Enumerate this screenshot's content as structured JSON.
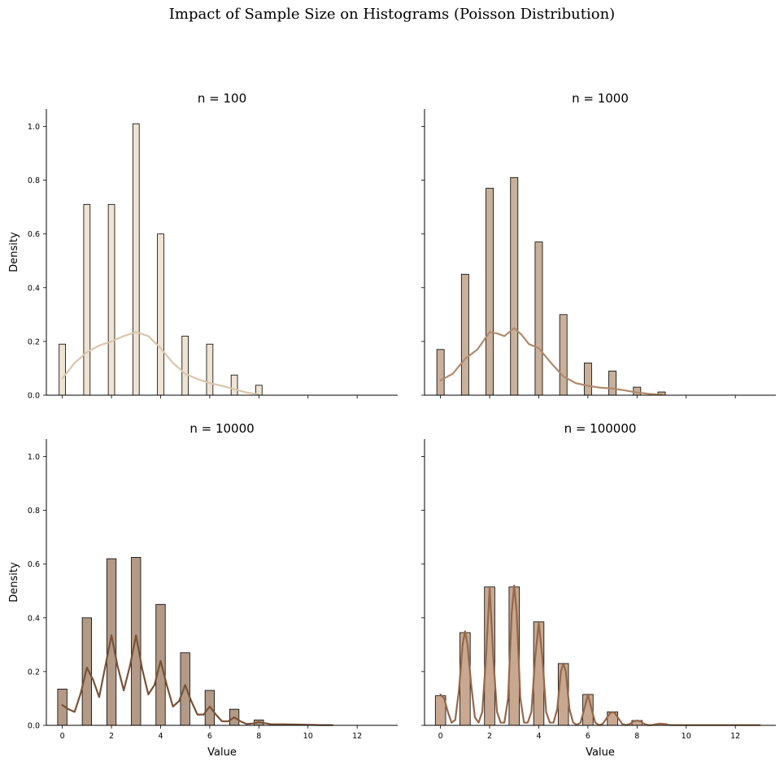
{
  "suptitle": "Impact of Sample Size on Histograms (Poisson Distribution)",
  "chart_data": [
    {
      "type": "bar",
      "title": "n = 100",
      "xlabel": "",
      "ylabel": "Density",
      "xlim": [
        -0.65,
        13.65
      ],
      "ylim": [
        0,
        1.065
      ],
      "xticks": [
        0,
        2,
        4,
        6,
        8,
        10,
        12
      ],
      "show_xticklabels": false,
      "yticks": [
        0.0,
        0.2,
        0.4,
        0.6,
        0.8,
        1.0
      ],
      "show_yticklabels": true,
      "bar_color": "#efe3d3",
      "kde_color": "#dac6ab",
      "bars": {
        "x": [
          0,
          1,
          2,
          3,
          4,
          5,
          6,
          7,
          8
        ],
        "values": [
          0.19,
          0.71,
          0.71,
          1.01,
          0.6,
          0.22,
          0.19,
          0.075,
          0.037
        ],
        "width": 0.26
      },
      "kde": {
        "x": [
          0,
          0.5,
          1,
          1.5,
          2,
          2.5,
          3,
          3.5,
          4,
          4.5,
          5,
          5.5,
          6,
          6.5,
          7,
          7.5,
          8
        ],
        "y": [
          0.062,
          0.12,
          0.16,
          0.185,
          0.2,
          0.22,
          0.235,
          0.22,
          0.175,
          0.12,
          0.08,
          0.06,
          0.045,
          0.035,
          0.022,
          0.01,
          0.003
        ]
      }
    },
    {
      "type": "bar",
      "title": "n = 1000",
      "xlabel": "",
      "ylabel": "",
      "xlim": [
        -0.65,
        13.65
      ],
      "ylim": [
        0,
        1.065
      ],
      "xticks": [
        0,
        2,
        4,
        6,
        8,
        10,
        12
      ],
      "show_xticklabels": false,
      "yticks": [
        0.0,
        0.2,
        0.4,
        0.6,
        0.8,
        1.0
      ],
      "show_yticklabels": false,
      "bar_color": "#c9b09b",
      "kde_color": "#b08a6c",
      "bars": {
        "x": [
          0,
          1,
          2,
          3,
          4,
          5,
          6,
          7,
          8,
          9
        ],
        "values": [
          0.17,
          0.45,
          0.77,
          0.81,
          0.57,
          0.3,
          0.12,
          0.09,
          0.03,
          0.012
        ],
        "width": 0.3
      },
      "kde": {
        "x": [
          0,
          0.5,
          1,
          1.5,
          2,
          2.3,
          2.6,
          3,
          3.3,
          3.6,
          4,
          4.5,
          5,
          5.5,
          6,
          6.5,
          7,
          7.5,
          8,
          8.5,
          9
        ],
        "y": [
          0.055,
          0.08,
          0.135,
          0.17,
          0.235,
          0.23,
          0.22,
          0.25,
          0.225,
          0.19,
          0.175,
          0.12,
          0.07,
          0.045,
          0.035,
          0.028,
          0.025,
          0.018,
          0.01,
          0.005,
          0.002
        ]
      }
    },
    {
      "type": "bar",
      "title": "n = 10000",
      "xlabel": "Value",
      "ylabel": "Density",
      "xlim": [
        -0.65,
        13.65
      ],
      "ylim": [
        0,
        1.065
      ],
      "xticks": [
        0,
        2,
        4,
        6,
        8,
        10,
        12
      ],
      "show_xticklabels": true,
      "yticks": [
        0.0,
        0.2,
        0.4,
        0.6,
        0.8,
        1.0
      ],
      "show_yticklabels": true,
      "bar_color": "#b39a86",
      "kde_color": "#7a5236",
      "bars": {
        "x": [
          0,
          1,
          2,
          3,
          4,
          5,
          6,
          7,
          8
        ],
        "values": [
          0.135,
          0.4,
          0.62,
          0.625,
          0.45,
          0.27,
          0.13,
          0.06,
          0.02
        ],
        "width": 0.38
      },
      "kde": {
        "x": [
          0,
          0.25,
          0.5,
          0.75,
          1,
          1.25,
          1.5,
          1.75,
          2,
          2.25,
          2.5,
          2.75,
          3,
          3.25,
          3.5,
          3.75,
          4,
          4.25,
          4.5,
          4.75,
          5,
          5.25,
          5.5,
          5.75,
          6,
          6.25,
          6.5,
          6.75,
          7,
          7.25,
          7.5,
          7.75,
          8,
          8.5,
          9,
          9.5,
          10,
          10.5,
          11
        ],
        "y": [
          0.075,
          0.06,
          0.05,
          0.12,
          0.215,
          0.17,
          0.105,
          0.22,
          0.335,
          0.22,
          0.13,
          0.22,
          0.335,
          0.21,
          0.115,
          0.15,
          0.24,
          0.15,
          0.07,
          0.09,
          0.15,
          0.09,
          0.04,
          0.04,
          0.07,
          0.04,
          0.015,
          0.015,
          0.03,
          0.015,
          0.005,
          0.007,
          0.012,
          0.004,
          0.004,
          0.003,
          0.002,
          0.001,
          0.001
        ]
      }
    },
    {
      "type": "bar",
      "title": "n = 100000",
      "xlabel": "Value",
      "ylabel": "",
      "xlim": [
        -0.65,
        13.65
      ],
      "ylim": [
        0,
        1.065
      ],
      "xticks": [
        0,
        2,
        4,
        6,
        8,
        10,
        12
      ],
      "show_xticklabels": true,
      "yticks": [
        0.0,
        0.2,
        0.4,
        0.6,
        0.8,
        1.0
      ],
      "show_yticklabels": false,
      "bar_color": "#c8a891",
      "kde_color": "#96674a",
      "bars": {
        "x": [
          0,
          1,
          2,
          3,
          4,
          5,
          6,
          7,
          8,
          9
        ],
        "values": [
          0.11,
          0.345,
          0.515,
          0.515,
          0.385,
          0.23,
          0.115,
          0.05,
          0.018,
          0.006
        ],
        "width": 0.42
      },
      "kde": {
        "x": [
          0,
          0.15,
          0.3,
          0.45,
          0.6,
          0.75,
          0.9,
          1,
          1.1,
          1.25,
          1.4,
          1.55,
          1.7,
          1.85,
          2,
          2.15,
          2.3,
          2.45,
          2.6,
          2.75,
          2.9,
          3,
          3.1,
          3.25,
          3.4,
          3.55,
          3.7,
          3.85,
          4,
          4.15,
          4.3,
          4.45,
          4.6,
          4.75,
          4.9,
          5,
          5.1,
          5.25,
          5.4,
          5.55,
          5.7,
          5.85,
          6,
          6.15,
          6.3,
          6.45,
          6.6,
          6.75,
          6.9,
          7,
          7.1,
          7.25,
          7.4,
          7.55,
          7.7,
          7.85,
          8,
          8.15,
          8.3,
          8.45,
          8.6,
          8.75,
          8.9,
          9,
          9.1,
          9.25,
          9.4,
          10,
          11,
          12,
          13
        ],
        "y": [
          0.115,
          0.1,
          0.05,
          0.01,
          0.02,
          0.13,
          0.3,
          0.35,
          0.3,
          0.15,
          0.03,
          0.01,
          0.05,
          0.25,
          0.51,
          0.25,
          0.05,
          0.01,
          0.01,
          0.1,
          0.42,
          0.52,
          0.42,
          0.1,
          0.01,
          0.01,
          0.05,
          0.25,
          0.38,
          0.25,
          0.05,
          0.01,
          0.01,
          0.06,
          0.2,
          0.23,
          0.2,
          0.06,
          0.01,
          0.002,
          0.01,
          0.06,
          0.115,
          0.06,
          0.01,
          0.001,
          0.005,
          0.025,
          0.045,
          0.05,
          0.045,
          0.025,
          0.005,
          0.001,
          0.005,
          0.015,
          0.018,
          0.015,
          0.005,
          0.001,
          0.001,
          0.004,
          0.006,
          0.006,
          0.005,
          0.002,
          0.001,
          0.001,
          0.001,
          0.001,
          0.001
        ]
      }
    }
  ]
}
